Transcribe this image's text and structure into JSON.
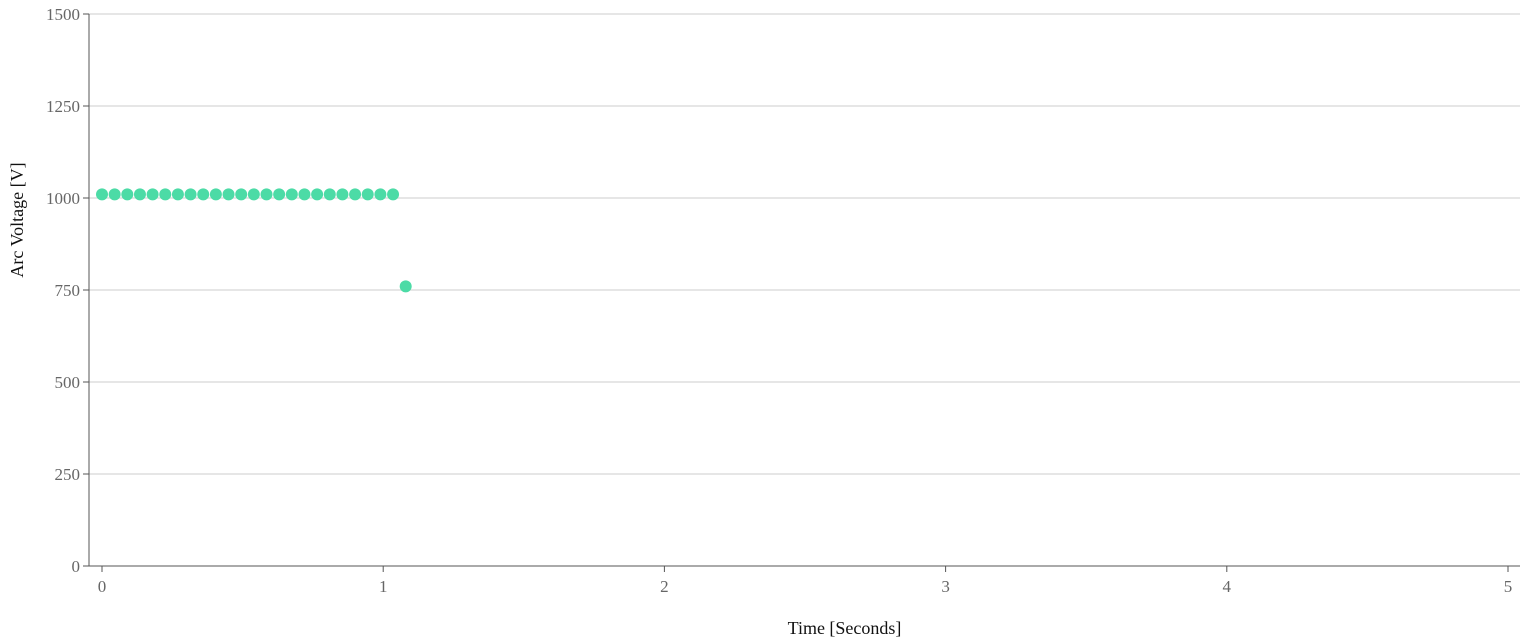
{
  "chart_data": {
    "type": "scatter",
    "xlabel": "Time [Seconds]",
    "ylabel": "Arc Voltage [V]",
    "xlim": [
      0,
      5
    ],
    "ylim": [
      0,
      1500
    ],
    "x_ticks": [
      0,
      1,
      2,
      3,
      4,
      5
    ],
    "y_ticks": [
      0,
      250,
      500,
      750,
      1000,
      1250,
      1500
    ],
    "grid": "horizontal",
    "marker_color": "#4cdba6",
    "series": [
      {
        "x": [
          0.0,
          0.045,
          0.09,
          0.135,
          0.18,
          0.225,
          0.27,
          0.315,
          0.36,
          0.405,
          0.45,
          0.495,
          0.54,
          0.585,
          0.63,
          0.675,
          0.72,
          0.765,
          0.81,
          0.855,
          0.9,
          0.945,
          0.99,
          1.035,
          1.08
        ],
        "y": [
          1010,
          1010,
          1010,
          1010,
          1010,
          1010,
          1010,
          1010,
          1010,
          1010,
          1010,
          1010,
          1010,
          1010,
          1010,
          1010,
          1010,
          1010,
          1010,
          1010,
          1010,
          1010,
          1010,
          1010,
          760
        ]
      }
    ]
  }
}
